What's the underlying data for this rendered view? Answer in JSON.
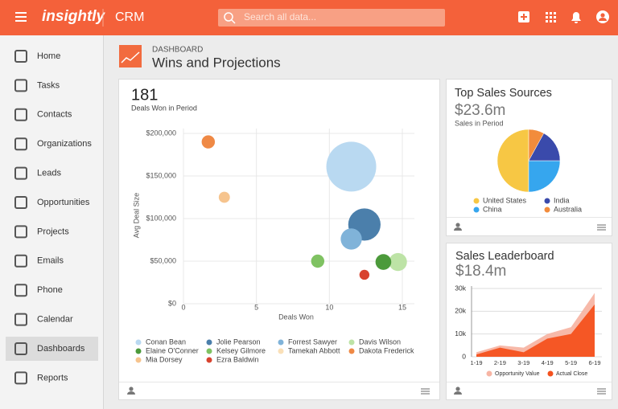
{
  "header": {
    "logo": "insightly",
    "app": "CRM",
    "search_placeholder": "Search all data..."
  },
  "sidebar": {
    "items": [
      "Home",
      "Tasks",
      "Contacts",
      "Organizations",
      "Leads",
      "Opportunities",
      "Projects",
      "Emails",
      "Phone",
      "Calendar",
      "Dashboards",
      "Reports"
    ],
    "selected": 10
  },
  "page": {
    "section": "DASHBOARD",
    "title": "Wins and Projections"
  },
  "chart_data": [
    {
      "type": "bubble",
      "kpi": 181,
      "kpi_label": "Deals Won in Period",
      "xlabel": "Deals Won",
      "ylabel": "Avg Deal Size",
      "xlim": [
        0,
        15
      ],
      "xticks": [
        0,
        5,
        10,
        15
      ],
      "ylim": [
        0,
        200000
      ],
      "yticks": [
        {
          "value": 0,
          "label": "$0"
        },
        {
          "value": 50000,
          "label": "$50,000"
        },
        {
          "value": 100000,
          "label": "$100,000"
        },
        {
          "value": 150000,
          "label": "$150,000"
        },
        {
          "value": 200000,
          "label": "$200,000"
        }
      ],
      "grid": true,
      "series": [
        {
          "name": "Conan Bean",
          "color": "#b9d9f1",
          "x": [
            11.5
          ],
          "values": [
            161000
          ],
          "size": [
            100
          ]
        },
        {
          "name": "Jolie Pearson",
          "color": "#4b7fab",
          "x": [
            12.4
          ],
          "values": [
            93000
          ],
          "size": [
            42
          ]
        },
        {
          "name": "Forrest Sawyer",
          "color": "#80b3d9",
          "x": [
            11.5
          ],
          "values": [
            76000
          ],
          "size": [
            18
          ]
        },
        {
          "name": "Davis Wilson",
          "color": "#bde3a6",
          "x": [
            14.7
          ],
          "values": [
            49000
          ],
          "size": [
            13
          ]
        },
        {
          "name": "Elaine O'Conner",
          "color": "#4c9a3b",
          "x": [
            13.7
          ],
          "values": [
            49000
          ],
          "size": [
            10
          ]
        },
        {
          "name": "Kelsey Gilmore",
          "color": "#7fc262",
          "x": [
            9.2
          ],
          "values": [
            50000
          ],
          "size": [
            7
          ]
        },
        {
          "name": "Tamekah Abbott",
          "color": "#fae0b8",
          "x": [
            null
          ],
          "values": [
            null
          ],
          "size": [
            null
          ]
        },
        {
          "name": "Dakota Frederick",
          "color": "#ef8945",
          "x": [
            1.7
          ],
          "values": [
            190000
          ],
          "size": [
            7
          ]
        },
        {
          "name": "Mia Dorsey",
          "color": "#f6c48e",
          "x": [
            2.8
          ],
          "values": [
            125000
          ],
          "size": [
            5
          ]
        },
        {
          "name": "Ezra Baldwin",
          "color": "#d8432f",
          "x": [
            12.4
          ],
          "values": [
            34000
          ],
          "size": [
            4
          ]
        }
      ]
    },
    {
      "type": "pie",
      "title": "Top Sales Sources",
      "kpi": "$23.6m",
      "kpi_label": "Sales in Period",
      "categories": [
        "United States",
        "China",
        "India",
        "Australia"
      ],
      "values": [
        50,
        25,
        17,
        8
      ],
      "colors": [
        "#f7c744",
        "#36a6ee",
        "#3a4aab",
        "#f28c3c"
      ],
      "direction": "counterclockwise"
    },
    {
      "type": "area",
      "title": "Sales Leaderboard",
      "kpi": "$18.4m",
      "categories": [
        "1-19",
        "2-19",
        "3-19",
        "4-19",
        "5-19",
        "6-19"
      ],
      "ylim": [
        0,
        30000
      ],
      "yticks": [
        0,
        {
          "value": 10000,
          "label": "10k"
        },
        {
          "value": 20000,
          "label": "20k"
        },
        {
          "value": 30000,
          "label": "30k"
        }
      ],
      "grid": true,
      "series": [
        {
          "name": "Opportunity Value",
          "color": "#f7b5a4",
          "values": [
            2000,
            5000,
            4000,
            10000,
            13000,
            28000
          ]
        },
        {
          "name": "Actual Close",
          "color": "#f4511e",
          "values": [
            1000,
            4000,
            2000,
            8000,
            10000,
            23000
          ]
        }
      ]
    }
  ]
}
